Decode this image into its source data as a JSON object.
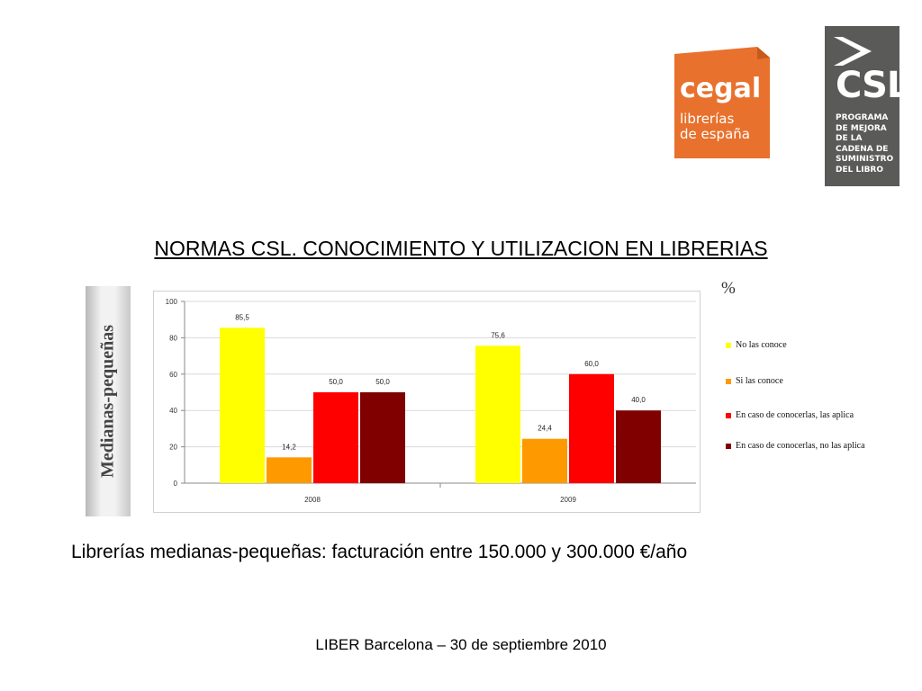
{
  "logos": {
    "cegal": {
      "name": "cegal",
      "line1": "librerías",
      "line2": "de españa",
      "color": "#e8712d"
    },
    "csl": {
      "name": "CSL",
      "lines": [
        "PROGRAMA",
        "DE MEJORA",
        "DE LA",
        "CADENA DE",
        "SUMINISTRO",
        "DEL LIBRO"
      ],
      "color": "#5a5a58"
    }
  },
  "page_title": "NORMAS CSL. CONOCIMIENTO Y UTILIZACION EN LIBRERIAS",
  "side_label": "Medianas-pequeñas",
  "unit_label": "%",
  "caption": "Librerías medianas-pequeñas: facturación entre 150.000 y 300.000 €/año",
  "footer": "LIBER Barcelona – 30 de septiembre 2010",
  "chart_data": {
    "type": "bar",
    "categories": [
      "2008",
      "2009"
    ],
    "ylim": [
      0,
      100
    ],
    "yticks": [
      0,
      20,
      40,
      60,
      80,
      100
    ],
    "grid": true,
    "legend_position": "right",
    "series": [
      {
        "name": "No las conoce",
        "color": "#ffff00",
        "values": [
          85.5,
          75.6
        ],
        "labels": [
          "85,5",
          "75,6"
        ]
      },
      {
        "name": "Si las conoce",
        "color": "#ff9900",
        "values": [
          14.2,
          24.4
        ],
        "labels": [
          "14,2",
          "24,4"
        ]
      },
      {
        "name": "En caso de conocerlas, las aplica",
        "color": "#ff0000",
        "values": [
          50.0,
          60.0
        ],
        "labels": [
          "50,0",
          "60,0"
        ]
      },
      {
        "name": "En caso de conocerlas, no las aplica",
        "color": "#800000",
        "values": [
          50.0,
          40.0
        ],
        "labels": [
          "50,0",
          "40,0"
        ]
      }
    ]
  }
}
